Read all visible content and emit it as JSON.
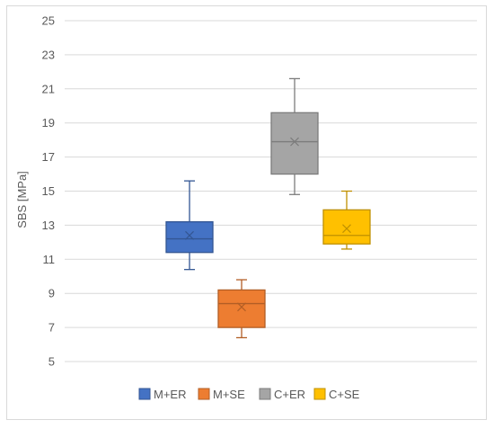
{
  "chart_data": {
    "type": "boxplot",
    "title": "",
    "xlabel": "",
    "ylabel": "SBS [MPa]",
    "ylim": [
      5,
      25
    ],
    "yticks": [
      5,
      7,
      9,
      11,
      13,
      15,
      17,
      19,
      21,
      23,
      25
    ],
    "grid": true,
    "legend_position": "bottom",
    "series": [
      {
        "name": "M+ER",
        "color": "#4472C4",
        "min": 10.4,
        "q1": 11.4,
        "median": 12.2,
        "q3": 13.2,
        "max": 15.6,
        "mean": 12.4
      },
      {
        "name": "M+SE",
        "color": "#ED7D31",
        "min": 6.4,
        "q1": 7.0,
        "median": 8.4,
        "q3": 9.2,
        "max": 9.8,
        "mean": 8.2
      },
      {
        "name": "C+ER",
        "color": "#A5A5A5",
        "min": 14.8,
        "q1": 16.0,
        "median": 17.9,
        "q3": 19.6,
        "max": 21.6,
        "mean": 17.9
      },
      {
        "name": "C+SE",
        "color": "#FFC000",
        "min": 11.6,
        "q1": 11.9,
        "median": 12.4,
        "q3": 13.9,
        "max": 15.0,
        "mean": 12.8
      }
    ]
  }
}
